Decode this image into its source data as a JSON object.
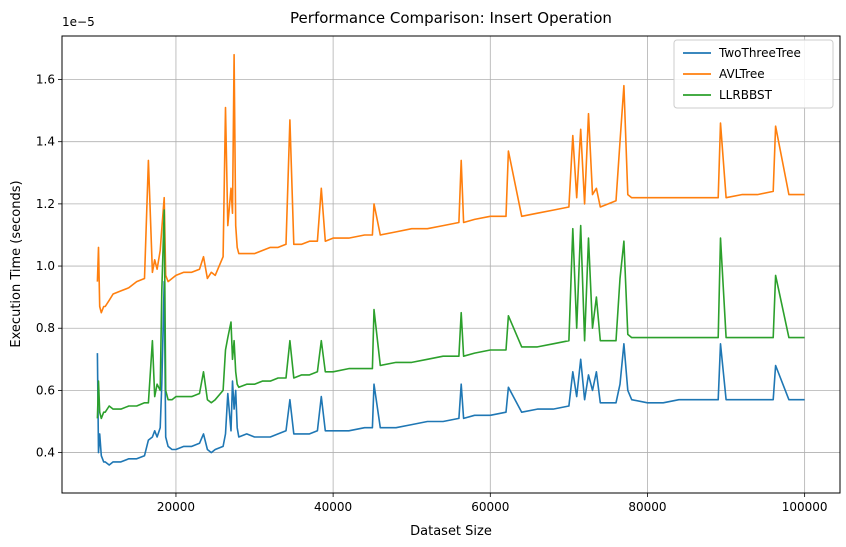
{
  "chart_data": {
    "type": "line",
    "title": "Performance Comparison: Insert Operation",
    "xlabel": "Dataset Size",
    "ylabel": "Execution Time (seconds)",
    "y_offset_label": "1e−5",
    "xlim": [
      5500,
      104500
    ],
    "ylim": [
      0.27,
      1.74
    ],
    "xticks": [
      20000,
      40000,
      60000,
      80000,
      100000
    ],
    "xtick_labels": [
      "20000",
      "40000",
      "60000",
      "80000",
      "100000"
    ],
    "yticks": [
      0.4,
      0.6,
      0.8,
      1.0,
      1.2,
      1.4,
      1.6
    ],
    "ytick_labels": [
      "0.4",
      "0.6",
      "0.8",
      "1.0",
      "1.2",
      "1.4",
      "1.6"
    ],
    "grid": true,
    "legend_position": "top-right",
    "series": [
      {
        "name": "TwoThreeTree",
        "color": "#1f77b4",
        "x": [
          10000,
          10150,
          10300,
          10500,
          10800,
          11000,
          11500,
          12000,
          13000,
          14000,
          15000,
          16000,
          16500,
          17000,
          17300,
          17600,
          18000,
          18200,
          18500,
          18700,
          19000,
          19500,
          20000,
          21000,
          22000,
          23000,
          23500,
          24000,
          24500,
          25000,
          26000,
          26300,
          26600,
          27000,
          27200,
          27400,
          27600,
          27800,
          28000,
          29000,
          30000,
          31000,
          32000,
          33000,
          34000,
          34500,
          35000,
          36000,
          37000,
          38000,
          38500,
          39000,
          40000,
          42000,
          44000,
          45000,
          45200,
          46000,
          48000,
          50000,
          52000,
          54000,
          56000,
          56300,
          56600,
          58000,
          60000,
          62000,
          62300,
          64000,
          66000,
          68000,
          70000,
          70500,
          71000,
          71500,
          72000,
          72500,
          73000,
          73500,
          74000,
          75000,
          76000,
          76500,
          77000,
          77500,
          78000,
          80000,
          82000,
          84000,
          86000,
          88000,
          89000,
          89300,
          90000,
          92000,
          94000,
          96000,
          96300,
          98000,
          100000
        ],
        "values": [
          0.72,
          0.4,
          0.46,
          0.39,
          0.37,
          0.37,
          0.36,
          0.37,
          0.37,
          0.38,
          0.38,
          0.39,
          0.44,
          0.45,
          0.47,
          0.45,
          0.48,
          0.62,
          0.95,
          0.45,
          0.42,
          0.41,
          0.41,
          0.42,
          0.42,
          0.43,
          0.46,
          0.41,
          0.4,
          0.41,
          0.42,
          0.46,
          0.59,
          0.47,
          0.63,
          0.54,
          0.6,
          0.48,
          0.45,
          0.46,
          0.45,
          0.45,
          0.45,
          0.46,
          0.47,
          0.57,
          0.46,
          0.46,
          0.46,
          0.47,
          0.58,
          0.47,
          0.47,
          0.47,
          0.48,
          0.48,
          0.62,
          0.48,
          0.48,
          0.49,
          0.5,
          0.5,
          0.51,
          0.62,
          0.51,
          0.52,
          0.52,
          0.53,
          0.61,
          0.53,
          0.54,
          0.54,
          0.55,
          0.66,
          0.58,
          0.7,
          0.57,
          0.65,
          0.6,
          0.66,
          0.56,
          0.56,
          0.56,
          0.62,
          0.75,
          0.6,
          0.57,
          0.56,
          0.56,
          0.57,
          0.57,
          0.57,
          0.57,
          0.75,
          0.57,
          0.57,
          0.57,
          0.57,
          0.68,
          0.57,
          0.57
        ]
      },
      {
        "name": "AVLTree",
        "color": "#ff7f0e",
        "x": [
          10000,
          10150,
          10300,
          10500,
          10800,
          11000,
          11500,
          12000,
          13000,
          14000,
          15000,
          16000,
          16500,
          17000,
          17300,
          17600,
          18000,
          18200,
          18500,
          18700,
          19000,
          19500,
          20000,
          21000,
          22000,
          23000,
          23500,
          24000,
          24500,
          25000,
          26000,
          26300,
          26600,
          27000,
          27200,
          27400,
          27600,
          27800,
          28000,
          29000,
          30000,
          31000,
          32000,
          33000,
          34000,
          34500,
          35000,
          36000,
          37000,
          38000,
          38500,
          39000,
          40000,
          42000,
          44000,
          45000,
          45200,
          46000,
          48000,
          50000,
          52000,
          54000,
          56000,
          56300,
          56600,
          58000,
          60000,
          62000,
          62300,
          64000,
          66000,
          68000,
          70000,
          70500,
          71000,
          71500,
          72000,
          72500,
          73000,
          73500,
          74000,
          75000,
          76000,
          76500,
          77000,
          77500,
          78000,
          80000,
          82000,
          84000,
          86000,
          88000,
          89000,
          89300,
          90000,
          92000,
          94000,
          96000,
          96300,
          98000,
          100000
        ],
        "values": [
          0.95,
          1.06,
          0.87,
          0.85,
          0.87,
          0.87,
          0.89,
          0.91,
          0.92,
          0.93,
          0.95,
          0.96,
          1.34,
          0.98,
          1.02,
          0.99,
          1.05,
          1.12,
          1.22,
          0.97,
          0.95,
          0.96,
          0.97,
          0.98,
          0.98,
          0.99,
          1.03,
          0.96,
          0.98,
          0.97,
          1.03,
          1.51,
          1.13,
          1.25,
          1.17,
          1.68,
          1.13,
          1.06,
          1.04,
          1.04,
          1.04,
          1.05,
          1.06,
          1.06,
          1.07,
          1.47,
          1.07,
          1.07,
          1.08,
          1.08,
          1.25,
          1.08,
          1.09,
          1.09,
          1.1,
          1.1,
          1.2,
          1.1,
          1.11,
          1.12,
          1.12,
          1.13,
          1.14,
          1.34,
          1.14,
          1.15,
          1.16,
          1.16,
          1.37,
          1.16,
          1.17,
          1.18,
          1.19,
          1.42,
          1.22,
          1.44,
          1.2,
          1.49,
          1.23,
          1.25,
          1.19,
          1.2,
          1.21,
          1.4,
          1.58,
          1.23,
          1.22,
          1.22,
          1.22,
          1.22,
          1.22,
          1.22,
          1.22,
          1.46,
          1.22,
          1.23,
          1.23,
          1.24,
          1.45,
          1.23,
          1.23
        ]
      },
      {
        "name": "LLRBBST",
        "color": "#2ca02c",
        "x": [
          10000,
          10150,
          10300,
          10500,
          10800,
          11000,
          11500,
          12000,
          13000,
          14000,
          15000,
          16000,
          16500,
          17000,
          17300,
          17600,
          18000,
          18200,
          18500,
          18700,
          19000,
          19500,
          20000,
          21000,
          22000,
          23000,
          23500,
          24000,
          24500,
          25000,
          26000,
          26300,
          26600,
          27000,
          27200,
          27400,
          27600,
          27800,
          28000,
          29000,
          30000,
          31000,
          32000,
          33000,
          34000,
          34500,
          35000,
          36000,
          37000,
          38000,
          38500,
          39000,
          40000,
          42000,
          44000,
          45000,
          45200,
          46000,
          48000,
          50000,
          52000,
          54000,
          56000,
          56300,
          56600,
          58000,
          60000,
          62000,
          62300,
          64000,
          66000,
          68000,
          70000,
          70500,
          71000,
          71500,
          72000,
          72500,
          73000,
          73500,
          74000,
          75000,
          76000,
          76500,
          77000,
          77500,
          78000,
          80000,
          82000,
          84000,
          86000,
          88000,
          89000,
          89300,
          90000,
          92000,
          94000,
          96000,
          96300,
          98000,
          100000
        ],
        "values": [
          0.51,
          0.63,
          0.53,
          0.51,
          0.53,
          0.53,
          0.55,
          0.54,
          0.54,
          0.55,
          0.55,
          0.56,
          0.56,
          0.76,
          0.58,
          0.62,
          0.6,
          0.92,
          1.18,
          0.6,
          0.57,
          0.57,
          0.58,
          0.58,
          0.58,
          0.59,
          0.66,
          0.57,
          0.56,
          0.57,
          0.6,
          0.73,
          0.77,
          0.82,
          0.7,
          0.76,
          0.66,
          0.62,
          0.61,
          0.62,
          0.62,
          0.63,
          0.63,
          0.64,
          0.64,
          0.76,
          0.64,
          0.65,
          0.65,
          0.66,
          0.76,
          0.66,
          0.66,
          0.67,
          0.67,
          0.67,
          0.86,
          0.68,
          0.69,
          0.69,
          0.7,
          0.71,
          0.71,
          0.85,
          0.71,
          0.72,
          0.73,
          0.73,
          0.84,
          0.74,
          0.74,
          0.75,
          0.76,
          1.12,
          0.8,
          1.13,
          0.76,
          1.09,
          0.8,
          0.9,
          0.76,
          0.76,
          0.76,
          0.96,
          1.08,
          0.78,
          0.77,
          0.77,
          0.77,
          0.77,
          0.77,
          0.77,
          0.77,
          1.09,
          0.77,
          0.77,
          0.77,
          0.77,
          0.97,
          0.77,
          0.77
        ]
      }
    ]
  }
}
